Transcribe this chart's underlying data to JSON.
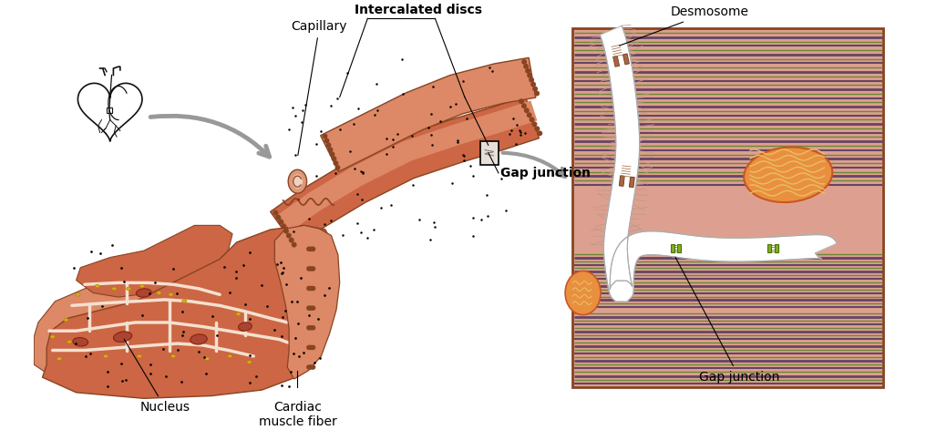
{
  "background_color": "#ffffff",
  "labels": {
    "capillary": "Capillary",
    "intercalated_discs": "Intercalated discs",
    "gap_junction": "Gap junction",
    "nucleus": "Nucleus",
    "cardiac_muscle_fiber": "Cardiac\nmuscle fiber",
    "desmosome": "Desmosome",
    "gap_junction_detail": "Gap junction"
  },
  "colors": {
    "muscle_main": "#cc6644",
    "muscle_light": "#dd8866",
    "muscle_pale": "#e8a888",
    "muscle_inner": "#f0c8b0",
    "muscle_outline": "#884422",
    "cell_wall": "#f5e0d0",
    "nucleus_fill": "#aa4433",
    "nucleus_outline": "#882211",
    "gold_spot": "#ddaa22",
    "capillary_outer": "#dd9977",
    "capillary_inner": "#f0d0c0",
    "detail_bg": "#dda090",
    "detail_border": "#884422",
    "sarcomere_green": "#6a8830",
    "sarcomere_purple": "#664466",
    "sarcomere_dark": "#553355",
    "mito_outer": "#cc5522",
    "mito_inner": "#e8a830",
    "mito_crista": "#e8c060",
    "gap_junc_green": "#88aa22",
    "desmo_brown": "#aa6644",
    "intercalated_white": "#ffffff",
    "filament_color": "#c09888",
    "heart_outline": "#111111",
    "arrow_gray": "#999999",
    "label_black": "#111111"
  },
  "figsize": [
    10.16,
    4.72
  ],
  "dpi": 100
}
